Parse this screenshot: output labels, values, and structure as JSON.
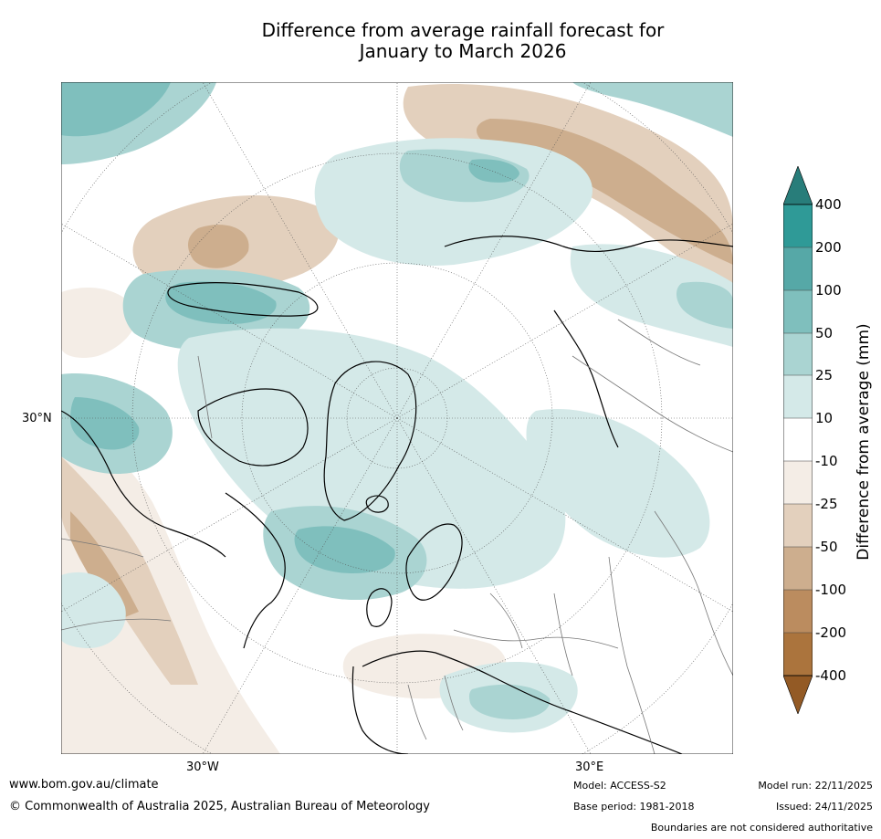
{
  "title": {
    "line1": "Difference from average rainfall forecast for",
    "line2": "January to March 2026"
  },
  "map": {
    "projection": "north-polar-stereographic",
    "lat_labels": [
      "30°N"
    ],
    "lon_labels": [
      "30°W",
      "30°E"
    ]
  },
  "colorbar": {
    "label": "Difference from average (mm)",
    "ticks": [
      "400",
      "200",
      "100",
      "50",
      "25",
      "10",
      "-10",
      "-25",
      "-50",
      "-100",
      "-200",
      "-400"
    ],
    "colors": {
      "wet_extend": "#287d7a",
      "wet_400": "#2f9a97",
      "wet_200": "#56a8a7",
      "wet_100": "#7fbfbd",
      "wet_50": "#aad4d2",
      "wet_25": "#d4e9e8",
      "neutral": "#ffffff",
      "dry_25": "#f4ede6",
      "dry_50": "#e3d0bd",
      "dry_100": "#cdae8e",
      "dry_200": "#bb8c5f",
      "dry_400": "#ab743d",
      "dry_extend": "#935a25"
    }
  },
  "footer": {
    "website": "www.bom.gov.au/climate",
    "copyright": "© Commonwealth of Australia 2025, Australian Bureau of Meteorology",
    "model": "Model: ACCESS-S2",
    "base_period": "Base period: 1981-2018",
    "model_run": "Model run: 22/11/2025",
    "issued": "Issued: 24/11/2025",
    "disclaimer": "Boundaries are not considered authoritative"
  }
}
